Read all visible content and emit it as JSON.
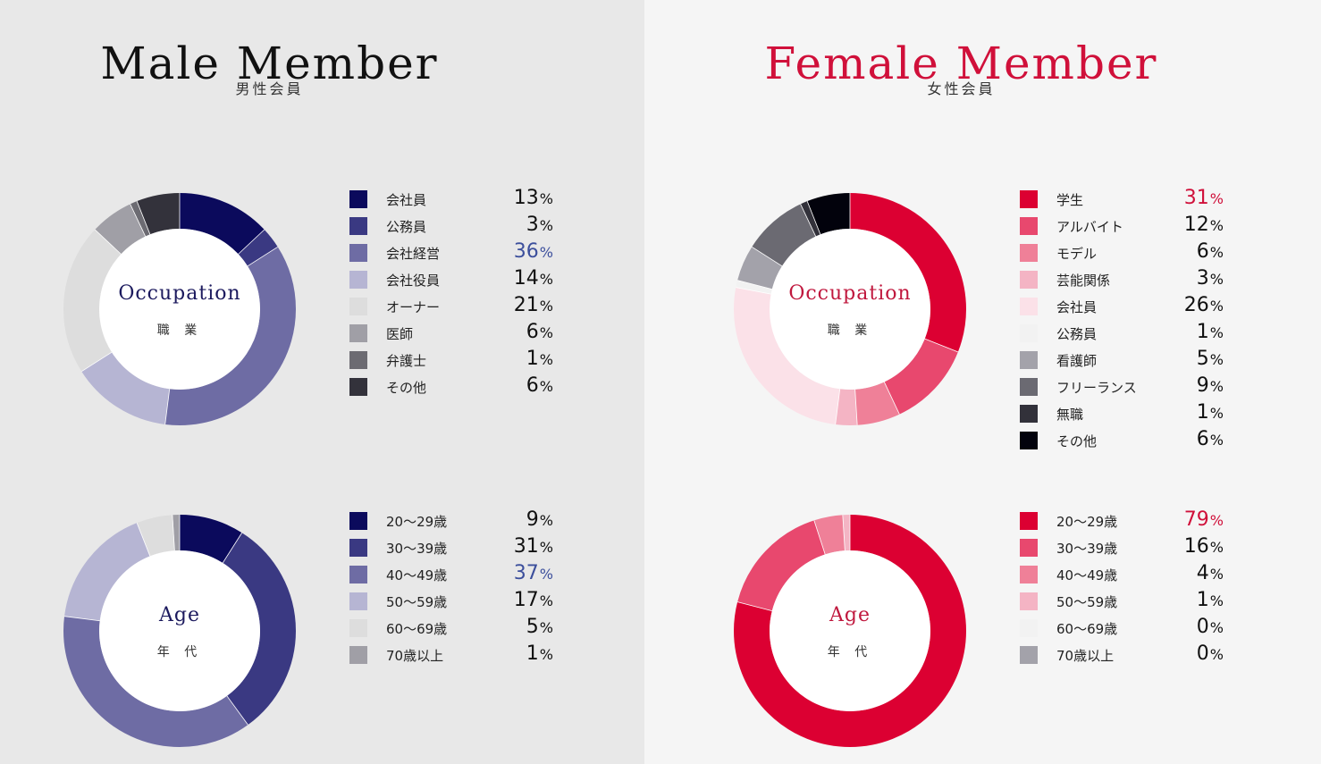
{
  "male": {
    "title": "Male Member",
    "subtitle": "男性会員",
    "occupation": {
      "label_en": "Occupation",
      "label_ja": "職 業",
      "highlight_index": 2,
      "chart_data": {
        "type": "pie",
        "categories": [
          "会社員",
          "公務員",
          "会社経営",
          "会社役員",
          "オーナー",
          "医師",
          "弁護士",
          "その他"
        ],
        "values": [
          13,
          3,
          36,
          14,
          21,
          6,
          1,
          6
        ],
        "colors": [
          "#0b0a5c",
          "#3a3982",
          "#6e6ca4",
          "#b6b5d3",
          "#dddddd",
          "#a09fa6",
          "#6c6b72",
          "#33323b"
        ],
        "unit": "%",
        "legend": "right"
      }
    },
    "age": {
      "label_en": "Age",
      "label_ja": "年 代",
      "highlight_index": 2,
      "chart_data": {
        "type": "pie",
        "categories": [
          "20～29歳",
          "30～39歳",
          "40～49歳",
          "50～59歳",
          "60～69歳",
          "70歳以上"
        ],
        "values": [
          9,
          31,
          37,
          17,
          5,
          1
        ],
        "colors": [
          "#0b0a5c",
          "#3a3982",
          "#6e6ca4",
          "#b6b5d3",
          "#dddddd",
          "#a09fa6"
        ],
        "unit": "%",
        "legend": "right"
      }
    }
  },
  "female": {
    "title": "Female Member",
    "subtitle": "女性会員",
    "occupation": {
      "label_en": "Occupation",
      "label_ja": "職 業",
      "highlight_index": 0,
      "chart_data": {
        "type": "pie",
        "categories": [
          "学生",
          "アルバイト",
          "モデル",
          "芸能関係",
          "会社員",
          "公務員",
          "看護師",
          "フリーランス",
          "無職",
          "その他"
        ],
        "values": [
          31,
          12,
          6,
          3,
          26,
          1,
          5,
          9,
          1,
          6
        ],
        "colors": [
          "#dc0032",
          "#e8486e",
          "#ef8098",
          "#f4b4c4",
          "#fbe1e8",
          "#f2f2f2",
          "#a3a2aa",
          "#6b6a72",
          "#32313a",
          "#02020c"
        ],
        "unit": "%",
        "legend": "right"
      }
    },
    "age": {
      "label_en": "Age",
      "label_ja": "年 代",
      "highlight_index": 0,
      "chart_data": {
        "type": "pie",
        "categories": [
          "20～29歳",
          "30～39歳",
          "40～49歳",
          "50～59歳",
          "60～69歳",
          "70歳以上"
        ],
        "values": [
          79,
          16,
          4,
          1,
          0,
          0
        ],
        "colors": [
          "#dc0032",
          "#e8486e",
          "#ef8098",
          "#f4b4c4",
          "#f2f2f2",
          "#a3a2aa"
        ],
        "unit": "%",
        "legend": "right"
      }
    }
  }
}
